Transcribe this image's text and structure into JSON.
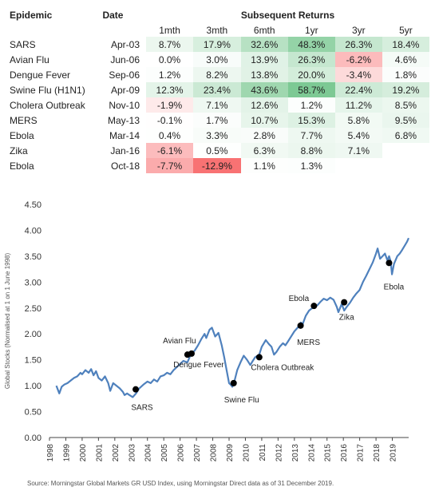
{
  "table": {
    "headers": {
      "epidemic": "Epidemic",
      "date": "Date",
      "returns": "Subsequent Returns"
    },
    "periods": [
      "1mth",
      "3mth",
      "6mth",
      "1yr",
      "3yr",
      "5yr"
    ],
    "rows": [
      {
        "name": "SARS",
        "date": "Apr-03",
        "values": [
          "8.7%",
          "17.9%",
          "32.6%",
          "48.3%",
          "26.3%",
          "18.4%"
        ],
        "nums": [
          8.7,
          17.9,
          32.6,
          48.3,
          26.3,
          18.4
        ]
      },
      {
        "name": "Avian Flu",
        "date": "Jun-06",
        "values": [
          "0.0%",
          "3.0%",
          "13.9%",
          "26.3%",
          "-6.2%",
          "4.6%"
        ],
        "nums": [
          0.0,
          3.0,
          13.9,
          26.3,
          -6.2,
          4.6
        ]
      },
      {
        "name": "Dengue Fever",
        "date": "Sep-06",
        "values": [
          "1.2%",
          "8.2%",
          "13.8%",
          "20.0%",
          "-3.4%",
          "1.8%"
        ],
        "nums": [
          1.2,
          8.2,
          13.8,
          20.0,
          -3.4,
          1.8
        ]
      },
      {
        "name": "Swine Flu (H1N1)",
        "date": "Apr-09",
        "values": [
          "12.3%",
          "23.4%",
          "43.6%",
          "58.7%",
          "22.4%",
          "19.2%"
        ],
        "nums": [
          12.3,
          23.4,
          43.6,
          58.7,
          22.4,
          19.2
        ]
      },
      {
        "name": "Cholera Outbreak",
        "date": "Nov-10",
        "values": [
          "-1.9%",
          "7.1%",
          "12.6%",
          "1.2%",
          "11.2%",
          "8.5%"
        ],
        "nums": [
          -1.9,
          7.1,
          12.6,
          1.2,
          11.2,
          8.5
        ]
      },
      {
        "name": "MERS",
        "date": "May-13",
        "values": [
          "-0.1%",
          "1.7%",
          "10.7%",
          "15.3%",
          "5.8%",
          "9.5%"
        ],
        "nums": [
          -0.1,
          1.7,
          10.7,
          15.3,
          5.8,
          9.5
        ]
      },
      {
        "name": "Ebola",
        "date": "Mar-14",
        "values": [
          "0.4%",
          "3.3%",
          "2.8%",
          "7.7%",
          "5.4%",
          "6.8%"
        ],
        "nums": [
          0.4,
          3.3,
          2.8,
          7.7,
          5.4,
          6.8
        ]
      },
      {
        "name": "Zika",
        "date": "Jan-16",
        "values": [
          "-6.1%",
          "0.5%",
          "6.3%",
          "8.8%",
          "7.1%",
          ""
        ],
        "nums": [
          -6.1,
          0.5,
          6.3,
          8.8,
          7.1,
          null
        ]
      },
      {
        "name": "Ebola",
        "date": "Oct-18",
        "values": [
          "-7.7%",
          "-12.9%",
          "1.1%",
          "1.3%",
          "",
          ""
        ],
        "nums": [
          -7.7,
          -12.9,
          1.1,
          1.3,
          null,
          null
        ]
      }
    ],
    "colors": {
      "positive": "#63be7b",
      "negative": "#f8696b",
      "neutral": "#ffffff"
    }
  },
  "chart_data": {
    "type": "line",
    "title": "",
    "xlabel": "",
    "ylabel": "Global Stocks (Normalised at 1 on 1 June 1998)",
    "ylim": [
      0,
      4.5
    ],
    "yticks": [
      "0.00",
      "0.50",
      "1.00",
      "1.50",
      "2.00",
      "2.50",
      "3.00",
      "3.50",
      "4.00",
      "4.50"
    ],
    "xlim": [
      1998,
      2020
    ],
    "xticks": [
      "1998",
      "1999",
      "2000",
      "2001",
      "2002",
      "2003",
      "2004",
      "2005",
      "2006",
      "2007",
      "2008",
      "2009",
      "2010",
      "2011",
      "2012",
      "2013",
      "2014",
      "2015",
      "2016",
      "2017",
      "2018",
      "2019"
    ],
    "grid": false,
    "line_color": "#4f81bd",
    "series": [
      {
        "x": [
          1998.42,
          1998.6,
          1998.75,
          1998.9,
          1999.1,
          1999.3,
          1999.5,
          1999.7,
          1999.9,
          2000.0,
          2000.2,
          2000.4,
          2000.55,
          2000.7,
          2000.85,
          2001.0,
          2001.2,
          2001.4,
          2001.6,
          2001.72,
          2001.9,
          2002.1,
          2002.3,
          2002.5,
          2002.6,
          2002.75,
          2002.9,
          2003.1,
          2003.3,
          2003.5,
          2003.75,
          2004.0,
          2004.2,
          2004.4,
          2004.6,
          2004.8,
          2005.0,
          2005.2,
          2005.4,
          2005.6,
          2005.8,
          2006.0,
          2006.2,
          2006.45,
          2006.65,
          2006.9,
          2007.1,
          2007.3,
          2007.5,
          2007.6,
          2007.8,
          2007.95,
          2008.15,
          2008.35,
          2008.55,
          2008.7,
          2008.85,
          2009.0,
          2009.1,
          2009.2,
          2009.3,
          2009.5,
          2009.7,
          2009.9,
          2010.1,
          2010.3,
          2010.45,
          2010.6,
          2010.85,
          2011.0,
          2011.25,
          2011.45,
          2011.6,
          2011.75,
          2011.9,
          2012.1,
          2012.3,
          2012.45,
          2012.6,
          2012.8,
          2013.0,
          2013.2,
          2013.4,
          2013.5,
          2013.7,
          2013.9,
          2014.1,
          2014.2,
          2014.4,
          2014.6,
          2014.8,
          2015.0,
          2015.2,
          2015.4,
          2015.6,
          2015.7,
          2015.9,
          2016.05,
          2016.2,
          2016.4,
          2016.6,
          2016.8,
          2017.0,
          2017.2,
          2017.4,
          2017.6,
          2017.8,
          2018.0,
          2018.1,
          2018.25,
          2018.4,
          2018.55,
          2018.7,
          2018.8,
          2018.9,
          2018.98,
          2019.1,
          2019.3,
          2019.45,
          2019.6,
          2019.75,
          2019.9,
          2020.0
        ],
        "y": [
          1.0,
          0.85,
          0.98,
          1.02,
          1.05,
          1.1,
          1.15,
          1.18,
          1.25,
          1.22,
          1.3,
          1.25,
          1.32,
          1.2,
          1.28,
          1.15,
          1.1,
          1.18,
          1.05,
          0.9,
          1.05,
          1.0,
          0.95,
          0.88,
          0.82,
          0.85,
          0.82,
          0.78,
          0.85,
          0.95,
          1.02,
          1.08,
          1.05,
          1.12,
          1.08,
          1.18,
          1.2,
          1.25,
          1.22,
          1.3,
          1.36,
          1.42,
          1.48,
          1.45,
          1.6,
          1.68,
          1.78,
          1.9,
          2.0,
          1.92,
          2.08,
          2.12,
          1.95,
          2.02,
          1.78,
          1.55,
          1.3,
          1.05,
          1.02,
          0.98,
          1.05,
          1.3,
          1.45,
          1.58,
          1.5,
          1.4,
          1.48,
          1.55,
          1.6,
          1.75,
          1.88,
          1.8,
          1.75,
          1.6,
          1.65,
          1.75,
          1.82,
          1.78,
          1.85,
          1.95,
          2.05,
          2.12,
          2.22,
          2.18,
          2.35,
          2.45,
          2.5,
          2.55,
          2.55,
          2.62,
          2.68,
          2.65,
          2.7,
          2.66,
          2.52,
          2.42,
          2.58,
          2.45,
          2.52,
          2.6,
          2.7,
          2.78,
          2.85,
          3.0,
          3.12,
          3.25,
          3.38,
          3.55,
          3.65,
          3.45,
          3.5,
          3.55,
          3.42,
          3.5,
          3.4,
          3.15,
          3.35,
          3.5,
          3.55,
          3.62,
          3.7,
          3.78,
          3.85
        ]
      }
    ],
    "events": [
      {
        "label": "SARS",
        "x": 2003.28,
        "y": 0.93
      },
      {
        "label": "Avian Flu",
        "x": 2006.45,
        "y": 1.6
      },
      {
        "label": "Dengue Fever",
        "x": 2006.7,
        "y": 1.62
      },
      {
        "label": "Swine Flu",
        "x": 2009.28,
        "y": 1.05
      },
      {
        "label": "Cholera Outbreak",
        "x": 2010.85,
        "y": 1.55
      },
      {
        "label": "MERS",
        "x": 2013.38,
        "y": 2.16
      },
      {
        "label": "Ebola",
        "x": 2014.2,
        "y": 2.54
      },
      {
        "label": "Zika",
        "x": 2016.05,
        "y": 2.61
      },
      {
        "label": "Ebola",
        "x": 2018.8,
        "y": 3.37
      }
    ]
  },
  "source": "Source: Morningstar Global Markets GR USD Index, using Morningstar Direct data as of 31 December 2019."
}
